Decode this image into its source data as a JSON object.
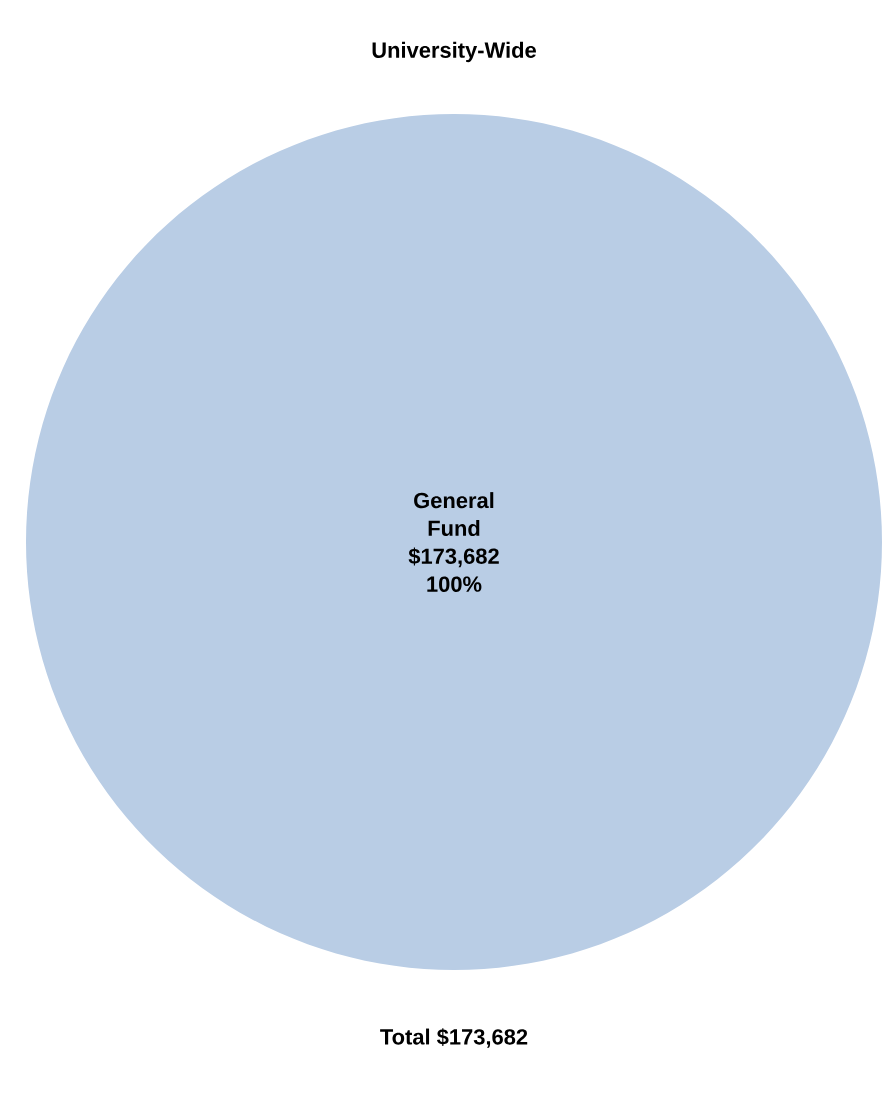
{
  "chart_data": {
    "type": "pie",
    "title": "University-Wide",
    "categories": [
      "General Fund"
    ],
    "values": [
      100
    ],
    "colors": [
      "#b9cde5"
    ],
    "value_labels": [
      "$173,682 100%"
    ],
    "annotations": [
      "Total $173,682"
    ]
  }
}
